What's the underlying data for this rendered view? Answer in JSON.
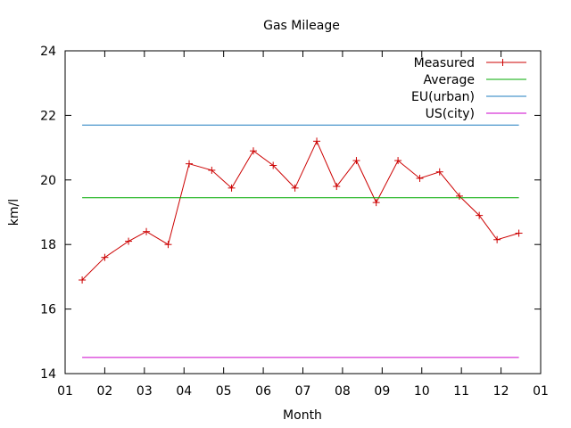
{
  "chart_data": {
    "type": "line",
    "title": "Gas Mileage",
    "xlabel": "Month",
    "ylabel": "km/l",
    "ylim": [
      14,
      24
    ],
    "yticks": [
      "14",
      "16",
      "18",
      "20",
      "22",
      "24"
    ],
    "xlim": [
      0,
      12
    ],
    "xticks": [
      "01",
      "02",
      "03",
      "04",
      "05",
      "06",
      "07",
      "08",
      "09",
      "10",
      "11",
      "12",
      "01"
    ],
    "legend": "top-right",
    "series": [
      {
        "name": "Measured",
        "color": "#cc0000",
        "marker": "plus",
        "x": [
          0.43,
          1.0,
          1.6,
          2.05,
          2.6,
          3.13,
          3.7,
          4.2,
          4.75,
          5.25,
          5.8,
          6.35,
          6.85,
          7.35,
          7.85,
          8.4,
          8.95,
          9.45,
          9.95,
          10.45,
          10.9,
          11.45
        ],
        "y": [
          16.9,
          17.6,
          18.1,
          18.4,
          18.0,
          20.5,
          20.3,
          19.75,
          20.9,
          20.45,
          19.75,
          21.2,
          19.8,
          20.6,
          19.3,
          20.6,
          20.05,
          20.25,
          19.5,
          18.9,
          18.15,
          18.35
        ]
      },
      {
        "name": "Average",
        "color": "#00aa00",
        "x": [
          0.43,
          11.45
        ],
        "y": [
          19.45,
          19.45
        ]
      },
      {
        "name": "EU(urban)",
        "color": "#1f7dbf",
        "x": [
          0.43,
          11.45
        ],
        "y": [
          21.7,
          21.7
        ]
      },
      {
        "name": "US(city)",
        "color": "#cc00cc",
        "x": [
          0.43,
          11.45
        ],
        "y": [
          14.5,
          14.5
        ]
      }
    ]
  }
}
